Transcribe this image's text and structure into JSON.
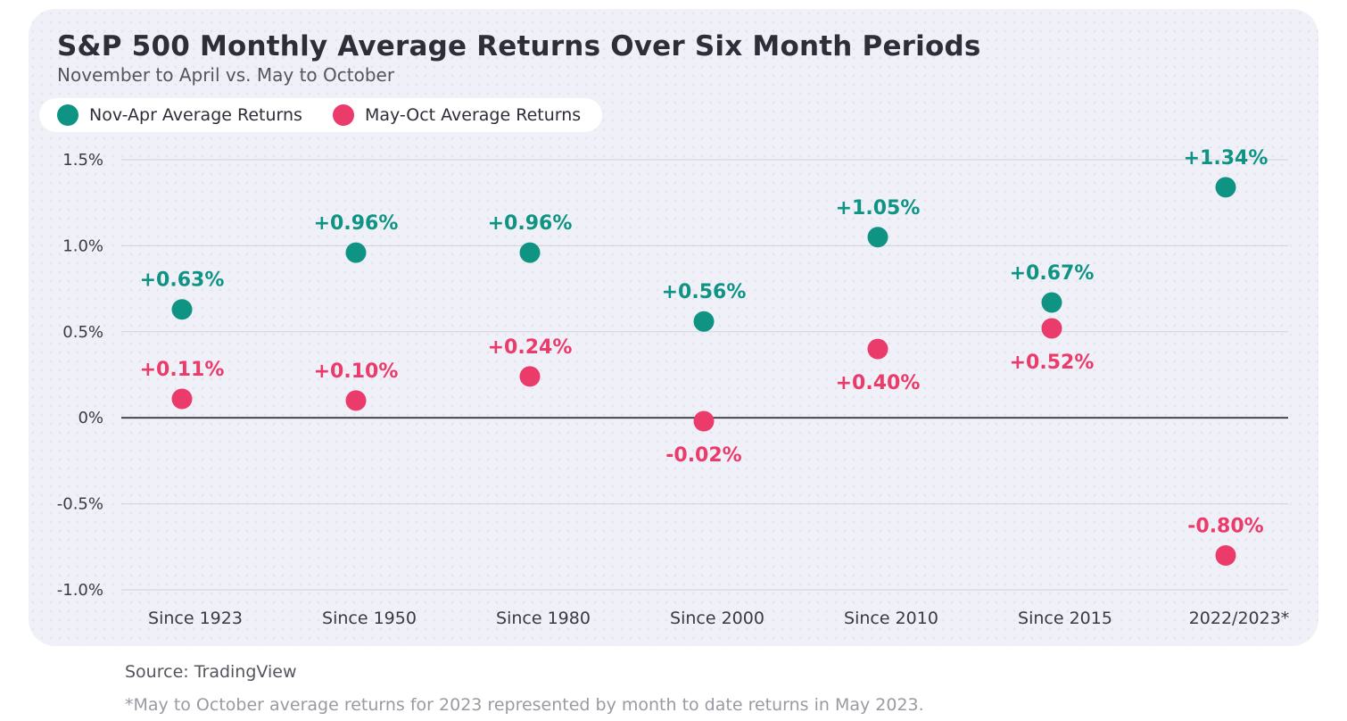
{
  "header": {
    "title": "S&P 500 Monthly Average Returns Over Six Month Periods",
    "subtitle": "November to April vs. May to October"
  },
  "colors": {
    "nov_apr": "#0f9484",
    "may_oct": "#ea3b6b",
    "zero_line": "#3a3a42",
    "grid": "#d2d2da",
    "axis_text": "#3a3a42"
  },
  "chart_data": {
    "type": "scatter",
    "categories": [
      "Since 1923",
      "Since 1950",
      "Since 1980",
      "Since 2000",
      "Since 2010",
      "Since 2015",
      "2022/2023*"
    ],
    "series": [
      {
        "name": "Nov-Apr Average Returns",
        "values": [
          0.63,
          0.96,
          0.96,
          0.56,
          1.05,
          0.67,
          1.34
        ],
        "labels": [
          "+0.63%",
          "+0.96%",
          "+0.96%",
          "+0.56%",
          "+1.05%",
          "+0.67%",
          "+1.34%"
        ]
      },
      {
        "name": "May-Oct Average Returns",
        "values": [
          0.11,
          0.1,
          0.24,
          -0.02,
          0.4,
          0.52,
          -0.8
        ],
        "labels": [
          "+0.11%",
          "+0.10%",
          "+0.24%",
          "-0.02%",
          "+0.40%",
          "+0.52%",
          "-0.80%"
        ]
      }
    ],
    "y_ticks": [
      1.5,
      1.0,
      0.5,
      0,
      -0.5,
      -1.0
    ],
    "y_tick_labels": [
      "1.5%",
      "1.0%",
      "0.5%",
      "0%",
      "-0.5%",
      "-1.0%"
    ],
    "ylim": [
      -1.0,
      1.5
    ],
    "grid": true,
    "legend_position": "top-left"
  },
  "footer": {
    "source": "Source: TradingView",
    "footnote": "*May to October average returns for 2023 represented by month to date returns in May 2023."
  }
}
